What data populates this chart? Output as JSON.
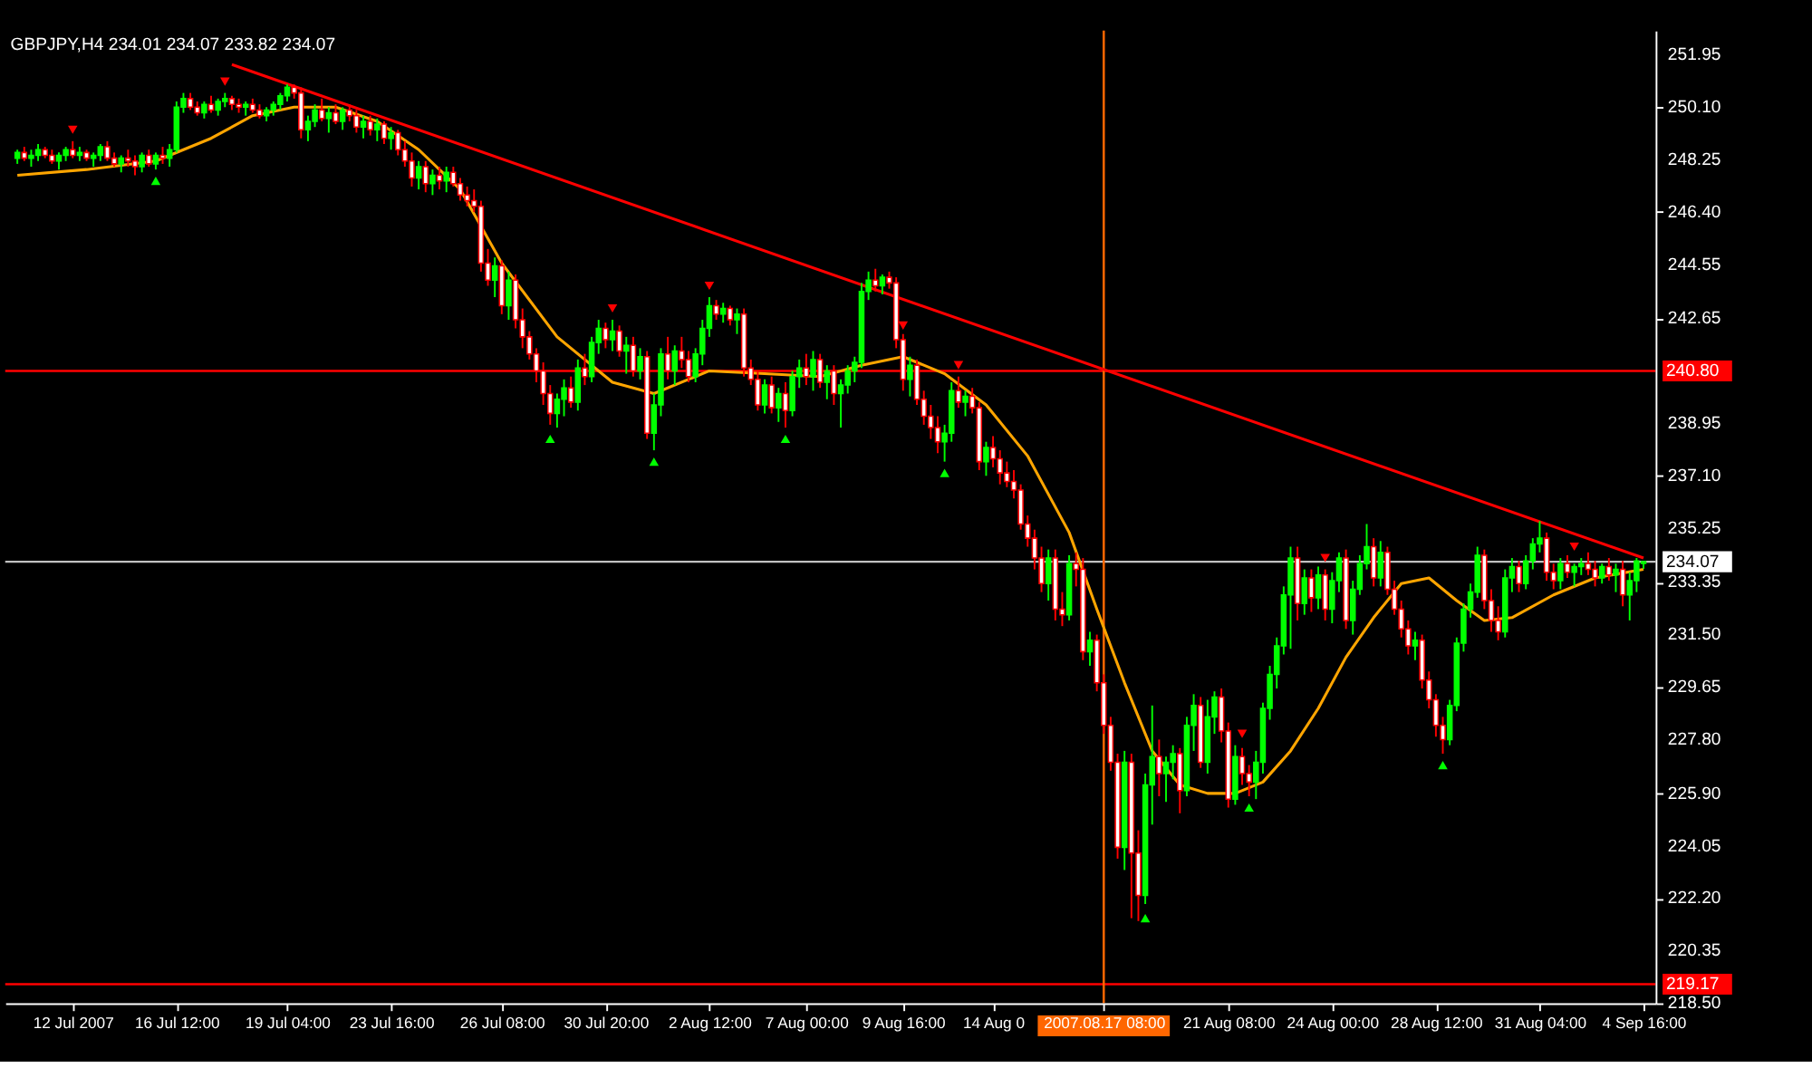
{
  "chart_data": {
    "type": "candlestick",
    "title": "GBPJPY,H4 234.01 234.07 233.82 234.07",
    "categories": [
      null,
      null,
      null,
      null,
      null,
      null,
      null,
      null,
      "12 Jul 2007",
      null,
      null,
      null,
      null,
      null,
      null,
      null,
      null,
      null,
      null,
      null,
      null,
      null,
      null,
      "16 Jul 12:00",
      null,
      null,
      null,
      null,
      null,
      null,
      null,
      null,
      null,
      null,
      null,
      null,
      null,
      null,
      null,
      "19 Jul 04:00",
      null,
      null,
      null,
      null,
      null,
      null,
      null,
      null,
      null,
      null,
      null,
      null,
      null,
      null,
      "23 Jul 16:00",
      null,
      null,
      null,
      null,
      null,
      null,
      null,
      null,
      null,
      null,
      null,
      null,
      null,
      null,
      null,
      "26 Jul 08:00",
      null,
      null,
      null,
      null,
      null,
      null,
      null,
      null,
      null,
      null,
      null,
      null,
      null,
      null,
      "30 Jul 20:00",
      null,
      null,
      null,
      null,
      null,
      null,
      null,
      null,
      null,
      null,
      null,
      null,
      null,
      null,
      "2 Aug 12:00",
      null,
      null,
      null,
      null,
      null,
      null,
      null,
      null,
      null,
      null,
      null,
      null,
      null,
      "7 Aug 00:00",
      null,
      null,
      null,
      null,
      null,
      null,
      null,
      null,
      null,
      null,
      null,
      null,
      null,
      "9 Aug 16:00",
      null,
      null,
      null,
      null,
      null,
      null,
      null,
      null,
      null,
      null,
      null,
      null,
      "14 Aug 0",
      null,
      null,
      null,
      null,
      null,
      null,
      null,
      null,
      null,
      null,
      null,
      null,
      null,
      null,
      null,
      "2007.08.17 08:00",
      null,
      null,
      null,
      null,
      null,
      null,
      null,
      null,
      null,
      null,
      null,
      null,
      null,
      null,
      null,
      null,
      null,
      "21 Aug 08:00",
      null,
      null,
      null,
      null,
      null,
      null,
      null,
      null,
      null,
      null,
      null,
      null,
      null,
      null,
      "24 Aug 00:00",
      null,
      null,
      null,
      null,
      null,
      null,
      null,
      null,
      null,
      null,
      null,
      null,
      null,
      null,
      "28 Aug 12:00",
      null,
      null,
      null,
      null,
      null,
      null,
      null,
      null,
      null,
      null,
      null,
      null,
      null,
      null,
      "31 Aug 04:00",
      null,
      null,
      null,
      null,
      null,
      null,
      null,
      null,
      null,
      null,
      null,
      null,
      null,
      null,
      "4 Sep 16:00"
    ],
    "ohlc": [
      [
        248.3,
        248.6,
        248.1,
        248.5
      ],
      [
        248.5,
        248.7,
        248.2,
        248.3
      ],
      [
        248.3,
        248.6,
        248.0,
        248.4
      ],
      [
        248.4,
        248.8,
        248.2,
        248.6
      ],
      [
        248.6,
        248.7,
        248.3,
        248.4
      ],
      [
        248.4,
        248.6,
        248.1,
        248.2
      ],
      [
        248.2,
        248.5,
        247.9,
        248.4
      ],
      [
        248.4,
        248.7,
        248.2,
        248.6
      ],
      [
        248.6,
        248.9,
        248.3,
        248.4
      ],
      [
        248.4,
        248.7,
        248.2,
        248.5
      ],
      [
        248.5,
        248.6,
        248.2,
        248.3
      ],
      [
        248.3,
        248.5,
        248.0,
        248.4
      ],
      [
        248.4,
        248.8,
        248.2,
        248.7
      ],
      [
        248.7,
        248.9,
        248.2,
        248.3
      ],
      [
        248.3,
        248.5,
        248.0,
        248.1
      ],
      [
        248.1,
        248.4,
        247.8,
        248.3
      ],
      [
        248.3,
        248.6,
        248.0,
        248.2
      ],
      [
        248.2,
        248.4,
        247.7,
        248.0
      ],
      [
        248.0,
        248.5,
        247.8,
        248.4
      ],
      [
        248.4,
        248.6,
        248.0,
        248.1
      ],
      [
        248.1,
        248.5,
        247.9,
        248.4
      ],
      [
        248.4,
        248.7,
        248.1,
        248.3
      ],
      [
        248.3,
        248.8,
        248.0,
        248.6
      ],
      [
        248.6,
        250.3,
        248.5,
        250.1
      ],
      [
        250.1,
        250.6,
        249.9,
        250.4
      ],
      [
        250.4,
        250.6,
        250.0,
        250.1
      ],
      [
        250.1,
        250.3,
        249.8,
        249.9
      ],
      [
        249.9,
        250.3,
        249.7,
        250.2
      ],
      [
        250.2,
        250.5,
        249.9,
        250.0
      ],
      [
        250.0,
        250.4,
        249.8,
        250.3
      ],
      [
        250.3,
        250.6,
        250.1,
        250.4
      ],
      [
        250.4,
        250.5,
        250.0,
        250.2
      ],
      [
        250.2,
        250.4,
        249.9,
        250.1
      ],
      [
        250.1,
        250.3,
        249.8,
        250.2
      ],
      [
        250.2,
        250.4,
        249.9,
        250.0
      ],
      [
        250.0,
        250.2,
        249.7,
        249.8
      ],
      [
        249.8,
        250.1,
        249.6,
        250.0
      ],
      [
        250.0,
        250.3,
        249.8,
        250.2
      ],
      [
        250.2,
        250.6,
        250.0,
        250.5
      ],
      [
        250.5,
        250.9,
        250.3,
        250.8
      ],
      [
        250.8,
        250.9,
        250.4,
        250.6
      ],
      [
        250.6,
        250.8,
        249.0,
        249.3
      ],
      [
        249.3,
        249.8,
        248.9,
        249.6
      ],
      [
        249.6,
        250.2,
        249.4,
        250.0
      ],
      [
        250.0,
        250.4,
        249.6,
        249.7
      ],
      [
        249.7,
        250.1,
        249.2,
        249.9
      ],
      [
        249.9,
        250.2,
        249.5,
        249.6
      ],
      [
        249.6,
        250.1,
        249.3,
        250.0
      ],
      [
        250.0,
        250.2,
        249.6,
        249.8
      ],
      [
        249.8,
        250.0,
        249.2,
        249.4
      ],
      [
        249.4,
        249.8,
        249.0,
        249.6
      ],
      [
        249.6,
        249.8,
        249.1,
        249.3
      ],
      [
        249.3,
        249.7,
        248.9,
        249.5
      ],
      [
        249.5,
        249.6,
        248.8,
        249.0
      ],
      [
        249.0,
        249.4,
        248.6,
        249.2
      ],
      [
        249.2,
        249.3,
        248.4,
        248.6
      ],
      [
        248.6,
        248.9,
        248.0,
        248.2
      ],
      [
        248.2,
        248.5,
        247.3,
        247.6
      ],
      [
        247.6,
        248.2,
        247.2,
        248.0
      ],
      [
        248.0,
        248.2,
        247.1,
        247.4
      ],
      [
        247.4,
        247.9,
        247.0,
        247.7
      ],
      [
        247.7,
        248.0,
        247.2,
        247.5
      ],
      [
        247.5,
        248.0,
        247.1,
        247.8
      ],
      [
        247.8,
        248.0,
        247.3,
        247.4
      ],
      [
        247.4,
        247.6,
        246.8,
        247.0
      ],
      [
        247.0,
        247.3,
        246.6,
        246.8
      ],
      [
        246.8,
        247.2,
        246.4,
        246.6
      ],
      [
        246.6,
        246.8,
        244.3,
        244.6
      ],
      [
        244.6,
        245.1,
        243.8,
        244.0
      ],
      [
        244.0,
        244.8,
        243.4,
        244.5
      ],
      [
        244.5,
        244.7,
        242.8,
        243.1
      ],
      [
        243.1,
        244.3,
        242.6,
        244.0
      ],
      [
        244.0,
        244.2,
        242.3,
        242.6
      ],
      [
        242.6,
        243.0,
        241.6,
        242.0
      ],
      [
        242.0,
        242.2,
        241.2,
        241.4
      ],
      [
        241.4,
        241.6,
        240.4,
        240.8
      ],
      [
        240.8,
        241.1,
        239.6,
        240.0
      ],
      [
        240.0,
        240.3,
        238.9,
        239.3
      ],
      [
        239.3,
        240.0,
        238.8,
        239.8
      ],
      [
        239.8,
        240.5,
        239.2,
        240.2
      ],
      [
        240.2,
        240.6,
        239.5,
        239.7
      ],
      [
        239.7,
        241.2,
        239.4,
        240.9
      ],
      [
        240.9,
        241.4,
        240.3,
        240.6
      ],
      [
        240.6,
        242.0,
        240.4,
        241.8
      ],
      [
        241.8,
        242.6,
        241.4,
        242.3
      ],
      [
        242.3,
        242.5,
        241.6,
        241.9
      ],
      [
        241.9,
        242.6,
        241.5,
        242.2
      ],
      [
        242.2,
        242.4,
        241.3,
        241.5
      ],
      [
        241.5,
        242.0,
        240.7,
        241.7
      ],
      [
        241.7,
        242.0,
        240.6,
        240.8
      ],
      [
        240.8,
        241.6,
        240.5,
        241.3
      ],
      [
        241.3,
        241.5,
        238.4,
        238.6
      ],
      [
        238.6,
        240.0,
        238.0,
        239.6
      ],
      [
        239.6,
        241.6,
        239.2,
        241.4
      ],
      [
        241.4,
        242.0,
        240.5,
        240.8
      ],
      [
        240.8,
        241.7,
        240.3,
        241.5
      ],
      [
        241.5,
        242.0,
        240.9,
        241.2
      ],
      [
        241.2,
        241.5,
        240.4,
        240.6
      ],
      [
        240.6,
        241.6,
        240.4,
        241.4
      ],
      [
        241.4,
        242.6,
        241.0,
        242.3
      ],
      [
        242.3,
        243.4,
        242.0,
        243.1
      ],
      [
        243.1,
        243.3,
        242.6,
        242.8
      ],
      [
        242.8,
        243.2,
        242.5,
        243.0
      ],
      [
        243.0,
        243.1,
        242.4,
        242.6
      ],
      [
        242.6,
        243.0,
        242.1,
        242.8
      ],
      [
        242.8,
        243.0,
        240.6,
        240.9
      ],
      [
        240.9,
        241.2,
        240.3,
        240.5
      ],
      [
        240.5,
        240.8,
        239.4,
        239.6
      ],
      [
        239.6,
        240.5,
        239.3,
        240.3
      ],
      [
        240.3,
        240.6,
        239.3,
        239.5
      ],
      [
        239.5,
        240.2,
        239.0,
        240.0
      ],
      [
        240.0,
        240.4,
        238.8,
        239.4
      ],
      [
        239.4,
        240.8,
        239.2,
        240.6
      ],
      [
        240.6,
        241.2,
        240.2,
        240.9
      ],
      [
        240.9,
        241.4,
        240.3,
        240.6
      ],
      [
        240.6,
        241.5,
        240.1,
        241.2
      ],
      [
        241.2,
        241.4,
        240.2,
        240.4
      ],
      [
        240.4,
        241.0,
        239.8,
        240.8
      ],
      [
        240.8,
        241.0,
        239.6,
        240.0
      ],
      [
        240.0,
        240.5,
        238.8,
        240.3
      ],
      [
        240.3,
        241.0,
        240.0,
        240.8
      ],
      [
        240.8,
        241.3,
        240.4,
        241.1
      ],
      [
        241.1,
        243.9,
        240.9,
        243.6
      ],
      [
        243.6,
        244.3,
        243.3,
        244.0
      ],
      [
        244.0,
        244.4,
        243.6,
        243.8
      ],
      [
        243.8,
        244.2,
        243.5,
        244.1
      ],
      [
        244.1,
        244.3,
        243.7,
        243.9
      ],
      [
        243.9,
        244.1,
        241.6,
        241.9
      ],
      [
        241.9,
        242.1,
        240.1,
        240.5
      ],
      [
        240.5,
        241.3,
        239.9,
        241.0
      ],
      [
        241.0,
        241.2,
        239.6,
        239.8
      ],
      [
        239.8,
        240.1,
        238.9,
        239.2
      ],
      [
        239.2,
        239.6,
        238.4,
        238.8
      ],
      [
        238.8,
        239.2,
        237.9,
        238.3
      ],
      [
        238.3,
        238.9,
        237.6,
        238.6
      ],
      [
        238.6,
        240.4,
        238.3,
        240.1
      ],
      [
        240.1,
        240.6,
        239.5,
        239.7
      ],
      [
        239.7,
        240.1,
        239.2,
        239.9
      ],
      [
        239.9,
        240.2,
        239.3,
        239.5
      ],
      [
        239.5,
        239.7,
        237.3,
        237.6
      ],
      [
        237.6,
        238.3,
        237.1,
        238.1
      ],
      [
        238.1,
        238.5,
        237.4,
        237.7
      ],
      [
        237.7,
        238.0,
        236.8,
        237.2
      ],
      [
        237.2,
        237.6,
        236.7,
        236.9
      ],
      [
        236.9,
        237.3,
        236.3,
        236.6
      ],
      [
        236.6,
        236.8,
        235.2,
        235.4
      ],
      [
        235.4,
        235.7,
        234.6,
        234.9
      ],
      [
        234.9,
        235.2,
        233.8,
        234.2
      ],
      [
        234.2,
        234.6,
        233.0,
        233.3
      ],
      [
        233.3,
        234.5,
        232.7,
        234.2
      ],
      [
        234.2,
        234.5,
        232.0,
        232.4
      ],
      [
        232.4,
        233.0,
        231.8,
        232.2
      ],
      [
        232.2,
        234.3,
        232.0,
        234.0
      ],
      [
        234.0,
        234.4,
        233.2,
        233.8
      ],
      [
        233.8,
        234.2,
        230.6,
        230.9
      ],
      [
        230.9,
        231.6,
        230.4,
        231.3
      ],
      [
        231.3,
        231.5,
        229.5,
        229.8
      ],
      [
        229.8,
        230.1,
        228.0,
        228.3
      ],
      [
        228.3,
        228.6,
        226.7,
        227.0
      ],
      [
        227.0,
        227.3,
        223.6,
        224.0
      ],
      [
        224.0,
        227.4,
        223.2,
        227.0
      ],
      [
        227.0,
        227.3,
        221.5,
        223.8
      ],
      [
        223.8,
        224.6,
        221.4,
        222.3
      ],
      [
        222.3,
        226.6,
        222.0,
        226.2
      ],
      [
        226.2,
        229.0,
        224.8,
        227.2
      ],
      [
        227.2,
        227.8,
        225.8,
        226.6
      ],
      [
        226.6,
        227.2,
        225.6,
        227.0
      ],
      [
        227.0,
        227.6,
        226.4,
        227.3
      ],
      [
        227.3,
        227.5,
        225.2,
        226.0
      ],
      [
        226.0,
        228.6,
        225.8,
        228.3
      ],
      [
        228.3,
        229.4,
        227.4,
        229.0
      ],
      [
        229.0,
        229.3,
        226.8,
        227.0
      ],
      [
        227.0,
        229.2,
        226.6,
        228.6
      ],
      [
        228.6,
        229.5,
        228.0,
        229.3
      ],
      [
        229.3,
        229.6,
        227.7,
        228.1
      ],
      [
        228.1,
        228.4,
        225.4,
        225.7
      ],
      [
        225.7,
        227.6,
        225.5,
        227.2
      ],
      [
        227.2,
        227.5,
        226.2,
        226.6
      ],
      [
        226.6,
        226.9,
        225.8,
        226.3
      ],
      [
        226.3,
        227.4,
        225.7,
        227.0
      ],
      [
        227.0,
        229.1,
        226.6,
        228.9
      ],
      [
        228.9,
        230.4,
        228.5,
        230.1
      ],
      [
        230.1,
        231.4,
        229.6,
        231.1
      ],
      [
        231.1,
        233.2,
        230.8,
        232.9
      ],
      [
        232.9,
        234.6,
        231.0,
        234.2
      ],
      [
        234.2,
        234.6,
        232.0,
        232.6
      ],
      [
        232.6,
        233.8,
        232.2,
        233.5
      ],
      [
        233.5,
        233.8,
        232.3,
        232.8
      ],
      [
        232.8,
        233.9,
        232.4,
        233.6
      ],
      [
        233.6,
        233.8,
        232.0,
        232.4
      ],
      [
        232.4,
        233.7,
        231.9,
        233.4
      ],
      [
        233.4,
        234.4,
        233.0,
        234.2
      ],
      [
        234.2,
        234.5,
        231.7,
        232.0
      ],
      [
        232.0,
        233.4,
        231.5,
        233.1
      ],
      [
        233.1,
        234.3,
        232.9,
        234.0
      ],
      [
        234.0,
        235.4,
        233.8,
        234.6
      ],
      [
        234.6,
        234.9,
        233.2,
        233.5
      ],
      [
        233.5,
        234.8,
        233.2,
        234.4
      ],
      [
        234.4,
        234.6,
        232.9,
        233.1
      ],
      [
        233.1,
        233.4,
        232.2,
        232.4
      ],
      [
        232.4,
        232.7,
        231.4,
        231.7
      ],
      [
        231.7,
        232.0,
        230.8,
        231.1
      ],
      [
        231.1,
        231.6,
        230.6,
        231.3
      ],
      [
        231.3,
        231.5,
        229.6,
        229.9
      ],
      [
        229.9,
        230.2,
        228.9,
        229.2
      ],
      [
        229.2,
        229.4,
        227.9,
        228.3
      ],
      [
        228.3,
        228.6,
        227.3,
        227.8
      ],
      [
        227.8,
        229.2,
        227.6,
        229.0
      ],
      [
        229.0,
        231.4,
        228.8,
        231.2
      ],
      [
        231.2,
        232.6,
        230.9,
        232.4
      ],
      [
        232.4,
        233.3,
        232.1,
        233.0
      ],
      [
        233.0,
        234.6,
        232.8,
        234.3
      ],
      [
        234.3,
        234.5,
        232.4,
        232.7
      ],
      [
        232.7,
        233.1,
        231.6,
        232.0
      ],
      [
        232.0,
        232.5,
        231.3,
        231.6
      ],
      [
        231.6,
        233.8,
        231.4,
        233.5
      ],
      [
        233.5,
        234.2,
        233.0,
        233.9
      ],
      [
        233.9,
        234.1,
        233.0,
        233.3
      ],
      [
        233.3,
        234.3,
        233.1,
        234.1
      ],
      [
        234.1,
        234.9,
        233.8,
        234.7
      ],
      [
        234.7,
        235.5,
        234.4,
        234.9
      ],
      [
        234.9,
        235.1,
        233.4,
        233.7
      ],
      [
        233.7,
        234.0,
        233.1,
        233.4
      ],
      [
        233.4,
        234.2,
        233.1,
        234.0
      ],
      [
        234.0,
        234.3,
        233.5,
        233.7
      ],
      [
        233.7,
        234.0,
        233.2,
        233.9
      ],
      [
        233.9,
        234.2,
        233.6,
        234.0
      ],
      [
        234.0,
        234.4,
        233.6,
        233.8
      ],
      [
        233.8,
        234.1,
        233.2,
        233.5
      ],
      [
        233.5,
        234.0,
        233.3,
        233.9
      ],
      [
        233.9,
        234.2,
        233.4,
        233.6
      ],
      [
        233.6,
        234.0,
        233.0,
        233.8
      ],
      [
        233.8,
        234.1,
        232.5,
        232.9
      ],
      [
        232.9,
        233.7,
        232.0,
        233.4
      ],
      [
        233.4,
        234.2,
        233.0,
        234.1
      ],
      [
        234.01,
        234.07,
        233.82,
        234.07
      ]
    ],
    "series": [
      {
        "type": "line",
        "color": "#ffa500",
        "values": [
          247.7,
          null,
          null,
          null,
          null,
          null,
          null,
          null,
          null,
          null,
          247.9,
          null,
          null,
          null,
          null,
          null,
          null,
          null,
          null,
          null,
          248.2,
          null,
          null,
          null,
          null,
          null,
          null,
          null,
          249.0,
          null,
          null,
          null,
          null,
          null,
          249.8,
          null,
          null,
          null,
          null,
          null,
          250.1,
          null,
          null,
          null,
          null,
          null,
          250.1,
          null,
          null,
          null,
          null,
          null,
          249.6,
          null,
          null,
          null,
          null,
          null,
          248.6,
          null,
          null,
          null,
          null,
          null,
          247.2,
          null,
          null,
          null,
          null,
          null,
          244.6,
          null,
          null,
          null,
          null,
          null,
          null,
          null,
          242.0,
          null,
          null,
          null,
          null,
          null,
          null,
          null,
          240.4,
          null,
          null,
          null,
          null,
          null,
          240.0,
          null,
          null,
          null,
          null,
          null,
          null,
          null,
          240.8,
          null,
          null,
          null,
          null,
          null,
          null,
          null,
          240.7,
          null,
          null,
          null,
          null,
          null,
          null,
          null,
          240.6,
          null,
          null,
          null,
          null,
          null,
          241.0,
          null,
          null,
          null,
          null,
          null,
          241.3,
          null,
          null,
          null,
          null,
          null,
          240.7,
          null,
          null,
          null,
          null,
          null,
          239.6,
          null,
          null,
          null,
          null,
          null,
          237.8,
          null,
          null,
          null,
          null,
          null,
          235.1,
          null,
          null,
          null,
          232.4,
          null,
          null,
          null,
          229.8,
          null,
          null,
          null,
          227.4,
          null,
          null,
          null,
          226.2,
          null,
          null,
          null,
          225.9,
          null,
          null,
          null,
          225.9,
          null,
          null,
          null,
          226.3,
          null,
          null,
          null,
          227.4,
          null,
          null,
          null,
          228.9,
          null,
          null,
          null,
          230.7,
          null,
          null,
          null,
          232.1,
          null,
          null,
          null,
          233.3,
          null,
          null,
          null,
          233.5,
          null,
          null,
          null,
          232.7,
          null,
          null,
          null,
          232.0,
          null,
          null,
          null,
          232.1,
          null,
          null,
          null,
          null,
          null,
          232.9,
          null,
          null,
          null,
          null,
          null,
          233.5,
          null,
          null,
          null,
          null,
          null,
          null,
          233.8
        ]
      },
      {
        "type": "line",
        "color": "#ff0000",
        "values": [
          null,
          null,
          null,
          null,
          null,
          null,
          null,
          null,
          null,
          null,
          null,
          null,
          null,
          null,
          null,
          null,
          null,
          null,
          null,
          null,
          null,
          null,
          null,
          null,
          null,
          null,
          null,
          null,
          null,
          null,
          null,
          251.6,
          null,
          null,
          null,
          null,
          null,
          null,
          null,
          null,
          null,
          null,
          null,
          null,
          null,
          null,
          null,
          null,
          null,
          null,
          null,
          null,
          null,
          null,
          null,
          null,
          null,
          null,
          null,
          null,
          null,
          null,
          null,
          null,
          null,
          null,
          null,
          null,
          null,
          null,
          null,
          null,
          null,
          null,
          null,
          null,
          null,
          null,
          null,
          null,
          null,
          null,
          null,
          null,
          null,
          null,
          null,
          null,
          null,
          null,
          null,
          null,
          null,
          null,
          null,
          null,
          null,
          null,
          null,
          null,
          null,
          null,
          null,
          null,
          null,
          null,
          null,
          null,
          null,
          null,
          null,
          null,
          null,
          null,
          null,
          null,
          null,
          null,
          null,
          null,
          null,
          null,
          null,
          null,
          null,
          null,
          null,
          null,
          null,
          null,
          null,
          null,
          null,
          null,
          null,
          null,
          null,
          null,
          null,
          null,
          null,
          null,
          null,
          null,
          null,
          null,
          null,
          null,
          null,
          null,
          null,
          null,
          null,
          null,
          null,
          null,
          null,
          null,
          null,
          null,
          null,
          null,
          null,
          null,
          null,
          null,
          null,
          null,
          null,
          null,
          null,
          null,
          null,
          null,
          null,
          null,
          null,
          null,
          null,
          null,
          null,
          null,
          null,
          null,
          null,
          null,
          null,
          null,
          null,
          null,
          null,
          null,
          null,
          null,
          null,
          null,
          null,
          null,
          null,
          null,
          null,
          null,
          null,
          null,
          null,
          null,
          null,
          null,
          null,
          null,
          null,
          null,
          null,
          null,
          null,
          null,
          null,
          null,
          null,
          null,
          null,
          null,
          null,
          null,
          null,
          null,
          null,
          null,
          null,
          null,
          null,
          null,
          null,
          null,
          null,
          234.2
        ]
      },
      {
        "type": "scatter",
        "color": "#ff0000",
        "marker": "triangle",
        "values": [
          null,
          null,
          null,
          null,
          null,
          null,
          null,
          null,
          249.3,
          null,
          null,
          null,
          null,
          null,
          null,
          null,
          null,
          null,
          null,
          null,
          null,
          null,
          null,
          null,
          null,
          null,
          null,
          null,
          null,
          null,
          251.0,
          null,
          null,
          null,
          null,
          null,
          null,
          null,
          null,
          null,
          null,
          null,
          null,
          null,
          null,
          null,
          null,
          null,
          null,
          null,
          null,
          null,
          null,
          null,
          null,
          null,
          null,
          null,
          null,
          null,
          null,
          null,
          null,
          null,
          null,
          null,
          null,
          null,
          null,
          null,
          null,
          null,
          null,
          null,
          null,
          null,
          null,
          null,
          null,
          null,
          null,
          null,
          null,
          null,
          null,
          null,
          243.0,
          null,
          null,
          null,
          null,
          null,
          null,
          null,
          null,
          null,
          null,
          null,
          null,
          null,
          243.8,
          null,
          null,
          null,
          null,
          null,
          null,
          null,
          null,
          null,
          null,
          null,
          null,
          null,
          null,
          null,
          null,
          null,
          null,
          null,
          null,
          null,
          null,
          null,
          null,
          null,
          null,
          null,
          242.4,
          null,
          null,
          null,
          null,
          null,
          null,
          null,
          241.0,
          null,
          null,
          null,
          null,
          null,
          null,
          null,
          null,
          null,
          null,
          null,
          null,
          null,
          null,
          null,
          null,
          null,
          null,
          null,
          null,
          null,
          null,
          null,
          null,
          null,
          null,
          null,
          null,
          null,
          null,
          null,
          null,
          null,
          null,
          null,
          null,
          null,
          null,
          null,
          null,
          228.0,
          null,
          null,
          null,
          null,
          null,
          null,
          null,
          null,
          null,
          null,
          null,
          234.2,
          null,
          null,
          null,
          null,
          null,
          null,
          null,
          null,
          null,
          null,
          null,
          null,
          null,
          null,
          null,
          null,
          null,
          null,
          null,
          null,
          null,
          null,
          null,
          null,
          null,
          null,
          null,
          null,
          null,
          null,
          null,
          null,
          null,
          null,
          null,
          234.6,
          null,
          null,
          null,
          null,
          null,
          null,
          null,
          null,
          null,
          null
        ]
      },
      {
        "type": "scatter",
        "color": "#00ff00",
        "marker": "triangle",
        "values": [
          null,
          null,
          null,
          null,
          null,
          null,
          null,
          null,
          null,
          null,
          null,
          null,
          null,
          null,
          null,
          null,
          null,
          null,
          null,
          null,
          247.5,
          null,
          null,
          null,
          null,
          null,
          null,
          null,
          null,
          null,
          null,
          null,
          null,
          null,
          null,
          null,
          null,
          null,
          null,
          null,
          null,
          null,
          null,
          null,
          null,
          null,
          null,
          null,
          null,
          null,
          null,
          null,
          null,
          null,
          null,
          null,
          null,
          null,
          null,
          null,
          null,
          null,
          null,
          null,
          null,
          null,
          null,
          null,
          null,
          null,
          null,
          null,
          null,
          null,
          null,
          null,
          null,
          238.4,
          null,
          null,
          null,
          null,
          null,
          null,
          null,
          null,
          null,
          null,
          null,
          null,
          null,
          null,
          237.6,
          null,
          null,
          null,
          null,
          null,
          null,
          null,
          null,
          null,
          null,
          null,
          null,
          null,
          null,
          null,
          null,
          null,
          null,
          238.4,
          null,
          null,
          null,
          null,
          null,
          null,
          null,
          null,
          null,
          null,
          null,
          null,
          null,
          null,
          null,
          null,
          null,
          null,
          null,
          null,
          null,
          null,
          237.2,
          null,
          null,
          null,
          null,
          null,
          null,
          null,
          null,
          null,
          null,
          null,
          null,
          null,
          null,
          null,
          null,
          null,
          null,
          null,
          null,
          null,
          null,
          null,
          null,
          null,
          null,
          null,
          null,
          221.5,
          null,
          null,
          null,
          null,
          null,
          null,
          null,
          null,
          null,
          null,
          null,
          null,
          null,
          null,
          225.4,
          null,
          null,
          null,
          null,
          null,
          null,
          null,
          null,
          null,
          null,
          null,
          null,
          null,
          null,
          null,
          null,
          null,
          null,
          null,
          null,
          null,
          null,
          null,
          null,
          null,
          null,
          null,
          226.9,
          null,
          null,
          null,
          null,
          null,
          null,
          null,
          null,
          null,
          null,
          null,
          null,
          null,
          null,
          null,
          null,
          null,
          null,
          null,
          null,
          null,
          null,
          null,
          null,
          null,
          null,
          null,
          null,
          null
        ]
      }
    ],
    "ylim": [
      218.5,
      252.8
    ],
    "yticks": [
      251.95,
      {
        "value": 250.1,
        "label": "250.10"
      },
      248.25,
      {
        "value": 246.4,
        "label": "246.40"
      },
      244.55,
      242.65,
      238.95,
      {
        "value": 237.1,
        "label": "237.10"
      },
      235.25,
      233.35,
      {
        "value": 231.5,
        "label": "231.50"
      },
      229.65,
      {
        "value": 227.8,
        "label": "227.80"
      },
      {
        "value": 225.9,
        "label": "225.90"
      },
      224.05,
      {
        "value": 222.2,
        "label": "222.20"
      },
      220.35,
      {
        "value": 218.5,
        "label": "218.50"
      }
    ],
    "ref_lines": [
      {
        "axis": "y",
        "value": 240.8,
        "label": "240.80",
        "color": "#ff0000"
      },
      {
        "axis": "y",
        "value": 234.07,
        "label": "234.07",
        "color": "#c0c0c0"
      },
      {
        "axis": "y",
        "value": 219.17,
        "label": "219.17",
        "color": "#ff0000"
      },
      {
        "axis": "x",
        "value": "2007.08.17 08:00",
        "color": "#ff6600"
      }
    ]
  }
}
